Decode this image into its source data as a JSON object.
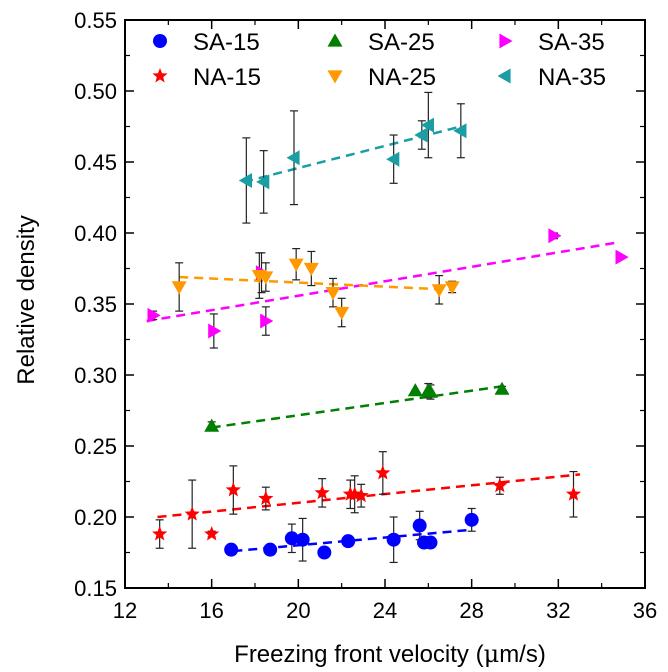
{
  "chart_data": {
    "type": "scatter",
    "xlabel_prefix": "Freezing front velocity (",
    "xlabel_mu": "μ",
    "xlabel_suffix": "m/s)",
    "ylabel": "Relative density",
    "xlim": [
      12,
      36
    ],
    "ylim": [
      0.15,
      0.55
    ],
    "xticks": [
      12,
      16,
      20,
      24,
      28,
      32,
      36
    ],
    "yticks": [
      0.15,
      0.2,
      0.25,
      0.3,
      0.35,
      0.4,
      0.45,
      0.5,
      0.55
    ],
    "ytick_labels": [
      "0.15",
      "0.20",
      "0.25",
      "0.30",
      "0.35",
      "0.40",
      "0.45",
      "0.50",
      "0.55"
    ],
    "legend_position": "top",
    "series": [
      {
        "name": "SA-15",
        "marker": "circle",
        "color": "#0000ff",
        "points": [
          {
            "x": 16.9,
            "y": 0.177,
            "err": 0.0
          },
          {
            "x": 18.7,
            "y": 0.177,
            "err": 0.0
          },
          {
            "x": 19.7,
            "y": 0.185,
            "err": 0.01
          },
          {
            "x": 20.2,
            "y": 0.184,
            "err": 0.015
          },
          {
            "x": 21.2,
            "y": 0.175,
            "err": 0.0
          },
          {
            "x": 22.3,
            "y": 0.183,
            "err": 0.0
          },
          {
            "x": 24.4,
            "y": 0.184,
            "err": 0.016
          },
          {
            "x": 25.6,
            "y": 0.194,
            "err": 0.01
          },
          {
            "x": 25.8,
            "y": 0.182,
            "err": 0.0
          },
          {
            "x": 26.1,
            "y": 0.182,
            "err": 0.0
          },
          {
            "x": 28.0,
            "y": 0.198,
            "err": 0.008
          }
        ],
        "fit": [
          [
            17.0,
            0.176
          ],
          [
            28.0,
            0.191
          ]
        ]
      },
      {
        "name": "SA-25",
        "marker": "triangle-up",
        "color": "#007f00",
        "points": [
          {
            "x": 16.0,
            "y": 0.264,
            "err": 0.003
          },
          {
            "x": 25.4,
            "y": 0.289,
            "err": 0.0
          },
          {
            "x": 26.0,
            "y": 0.289,
            "err": 0.005
          },
          {
            "x": 26.1,
            "y": 0.288,
            "err": 0.005
          },
          {
            "x": 29.4,
            "y": 0.29,
            "err": 0.002
          }
        ],
        "fit": [
          [
            16.0,
            0.263
          ],
          [
            29.4,
            0.292
          ]
        ]
      },
      {
        "name": "SA-35",
        "marker": "triangle-right",
        "color": "#ff00ff",
        "points": [
          {
            "x": 13.3,
            "y": 0.342,
            "err": 0.003
          },
          {
            "x": 16.1,
            "y": 0.331,
            "err": 0.012
          },
          {
            "x": 18.3,
            "y": 0.372,
            "err": 0.014
          },
          {
            "x": 18.5,
            "y": 0.338,
            "err": 0.01
          },
          {
            "x": 31.8,
            "y": 0.398,
            "err": 0.002
          },
          {
            "x": 34.9,
            "y": 0.383,
            "err": 0.0
          }
        ],
        "fit": [
          [
            13.0,
            0.338
          ],
          [
            34.6,
            0.393
          ]
        ]
      },
      {
        "name": "NA-15",
        "marker": "star",
        "color": "#ff0000",
        "points": [
          {
            "x": 13.6,
            "y": 0.188,
            "err": 0.01
          },
          {
            "x": 15.1,
            "y": 0.202,
            "err": 0.024
          },
          {
            "x": 16.0,
            "y": 0.188,
            "err": 0.002
          },
          {
            "x": 17.0,
            "y": 0.219,
            "err": 0.017
          },
          {
            "x": 18.5,
            "y": 0.213,
            "err": 0.008
          },
          {
            "x": 21.1,
            "y": 0.217,
            "err": 0.01
          },
          {
            "x": 22.4,
            "y": 0.216,
            "err": 0.01
          },
          {
            "x": 22.6,
            "y": 0.216,
            "err": 0.013
          },
          {
            "x": 22.9,
            "y": 0.215,
            "err": 0.008
          },
          {
            "x": 23.9,
            "y": 0.231,
            "err": 0.015
          },
          {
            "x": 29.3,
            "y": 0.222,
            "err": 0.006
          },
          {
            "x": 32.7,
            "y": 0.216,
            "err": 0.016
          }
        ],
        "fit": [
          [
            13.5,
            0.2
          ],
          [
            33.0,
            0.23
          ]
        ]
      },
      {
        "name": "NA-25",
        "marker": "triangle-down",
        "color": "#ff9900",
        "points": [
          {
            "x": 14.5,
            "y": 0.362,
            "err": 0.017
          },
          {
            "x": 18.2,
            "y": 0.37,
            "err": 0.016
          },
          {
            "x": 18.5,
            "y": 0.369,
            "err": 0.01
          },
          {
            "x": 19.9,
            "y": 0.378,
            "err": 0.011
          },
          {
            "x": 20.6,
            "y": 0.375,
            "err": 0.012
          },
          {
            "x": 21.6,
            "y": 0.358,
            "err": 0.01
          },
          {
            "x": 22.0,
            "y": 0.344,
            "err": 0.01
          },
          {
            "x": 26.5,
            "y": 0.36,
            "err": 0.01
          },
          {
            "x": 27.1,
            "y": 0.362,
            "err": 0.004
          }
        ],
        "fit": [
          [
            14.5,
            0.369
          ],
          [
            27.1,
            0.36
          ]
        ]
      },
      {
        "name": "NA-35",
        "marker": "triangle-left",
        "color": "#1a9ea3",
        "points": [
          {
            "x": 17.6,
            "y": 0.437,
            "err": 0.03
          },
          {
            "x": 18.4,
            "y": 0.436,
            "err": 0.022
          },
          {
            "x": 19.8,
            "y": 0.453,
            "err": 0.033
          },
          {
            "x": 24.4,
            "y": 0.452,
            "err": 0.017
          },
          {
            "x": 25.7,
            "y": 0.469,
            "err": 0.01
          },
          {
            "x": 26.0,
            "y": 0.476,
            "err": 0.023
          },
          {
            "x": 27.5,
            "y": 0.472,
            "err": 0.019
          }
        ],
        "fit": [
          [
            17.5,
            0.436
          ],
          [
            27.5,
            0.475
          ]
        ]
      }
    ]
  }
}
